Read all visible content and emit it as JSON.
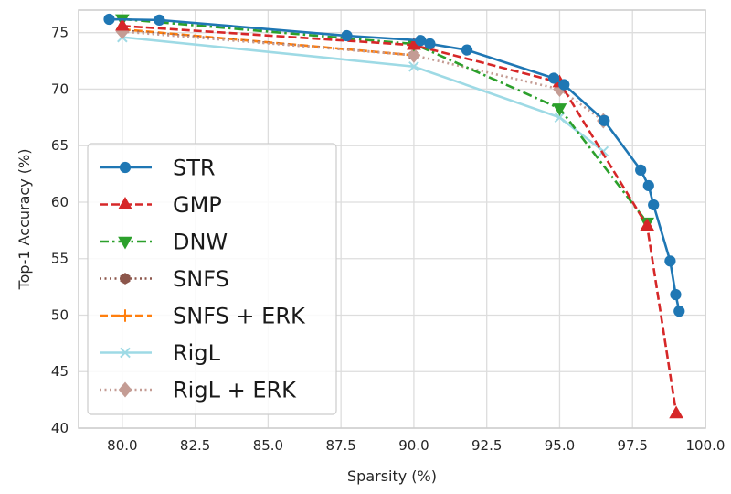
{
  "chart_data": {
    "type": "line",
    "title": "",
    "xlabel": "Sparsity (%)",
    "ylabel": "Top-1 Accuracy (%)",
    "xlim": [
      78.5,
      100.0
    ],
    "ylim": [
      40,
      77
    ],
    "xticks": [
      80.0,
      82.5,
      85.0,
      87.5,
      90.0,
      92.5,
      95.0,
      97.5,
      100.0
    ],
    "xtick_labels": [
      "80.0",
      "82.5",
      "85.0",
      "87.5",
      "90.0",
      "92.5",
      "95.0",
      "97.5",
      "100.0"
    ],
    "yticks": [
      40,
      45,
      50,
      55,
      60,
      65,
      70,
      75
    ],
    "ytick_labels": [
      "40",
      "45",
      "50",
      "55",
      "60",
      "65",
      "70",
      "75"
    ],
    "grid": true,
    "legend_position": "lower-left",
    "series": [
      {
        "name": "STR",
        "color": "#1f77b4",
        "dash": "solid",
        "marker": "circle",
        "x": [
          79.55,
          81.27,
          87.7,
          90.23,
          90.55,
          91.82,
          94.8,
          95.15,
          96.53,
          97.78,
          98.05,
          98.22,
          98.79,
          98.98,
          99.1
        ],
        "y": [
          76.19,
          76.12,
          74.73,
          74.31,
          74.01,
          73.47,
          70.97,
          70.4,
          67.22,
          62.84,
          61.46,
          59.76,
          54.79,
          51.82,
          50.35
        ]
      },
      {
        "name": "GMP",
        "color": "#d62728",
        "dash": "dashed",
        "marker": "triangle-up",
        "x": [
          80.0,
          90.0,
          95.0,
          98.0,
          99.0
        ],
        "y": [
          75.6,
          73.9,
          70.6,
          57.9,
          41.3
        ]
      },
      {
        "name": "DNW",
        "color": "#2ca02c",
        "dash": "dashdot",
        "marker": "triangle-down",
        "x": [
          80.0,
          90.0,
          95.0,
          98.0
        ],
        "y": [
          76.2,
          74.0,
          68.3,
          58.2
        ]
      },
      {
        "name": "SNFS",
        "color": "#8c564b",
        "dash": "dotted",
        "marker": "hexagon",
        "x": [
          80.0,
          90.0
        ],
        "y": [
          75.2,
          73.0
        ]
      },
      {
        "name": "SNFS + ERK",
        "color": "#ff7f0e",
        "dash": "dashed",
        "marker": "plus",
        "x": [
          80.0,
          90.0
        ],
        "y": [
          75.3,
          73.0
        ]
      },
      {
        "name": "RigL",
        "color": "#9edae5",
        "dash": "solid",
        "marker": "x",
        "x": [
          80.0,
          90.0,
          95.0,
          96.5
        ],
        "y": [
          74.6,
          72.0,
          67.5,
          64.5
        ]
      },
      {
        "name": "RigL + ERK",
        "color": "#c49c94",
        "dash": "dotted",
        "marker": "diamond",
        "x": [
          80.0,
          90.0,
          95.0,
          96.5
        ],
        "y": [
          75.1,
          73.0,
          70.0,
          67.2
        ]
      }
    ]
  }
}
